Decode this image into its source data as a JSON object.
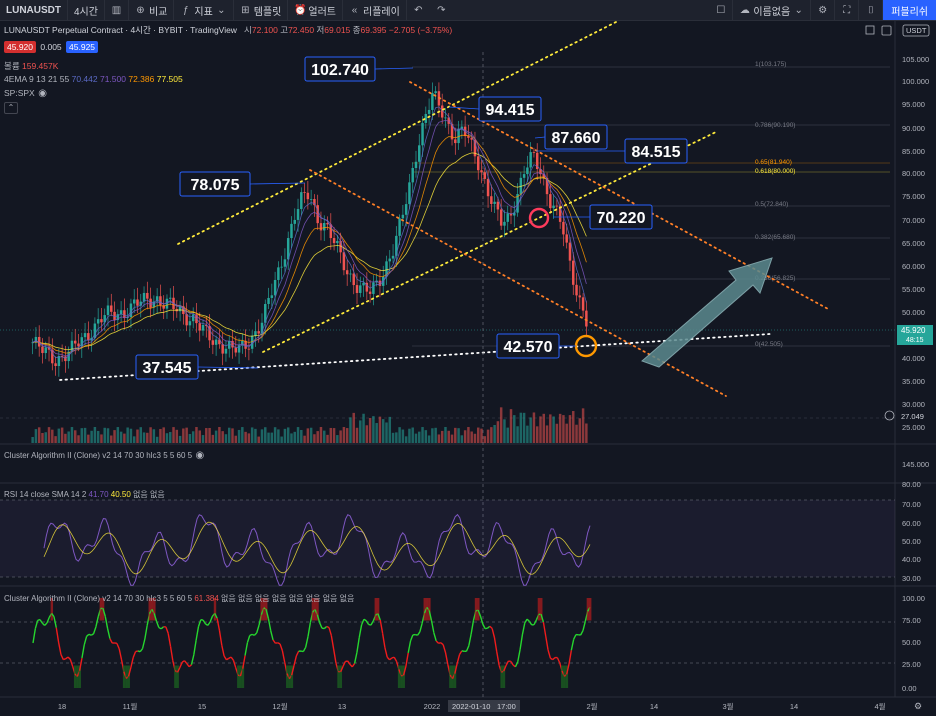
{
  "toolbar": {
    "symbol": "LUNAUSDT",
    "interval": "4시간",
    "compare": "비교",
    "indicators": "지표",
    "templates": "템플릿",
    "alert": "얼러트",
    "replay": "리플레이",
    "unnamed": "이름없음",
    "publish": "퍼블리쉬"
  },
  "legend": {
    "title": "LUNAUSDT Perpetual Contract · 4시간 · BYBIT · TradingView",
    "o_label": "시",
    "o": "72.100",
    "h_label": "고",
    "h": "72.450",
    "l_label": "저",
    "l": "69.015",
    "c_label": "종",
    "c": "69.395",
    "change": "−2.705 (−3.75%)",
    "bid": "45.920",
    "spread": "0.005",
    "ask": "45.925",
    "volume_label": "볼륨",
    "volume": "159.457K",
    "ema_label": "4EMA 9 13 21 55",
    "ema1": "70.442",
    "ema2": "71.500",
    "ema3": "72.386",
    "ema4": "77.505",
    "compare_symbol": "SP:SPX"
  },
  "currency": "USDT",
  "last_price": "45.920",
  "countdown": "48:15",
  "volume_pane_label": "27.049",
  "axis_extra": "145.000",
  "panes": {
    "cluster1": "Cluster Algorithm II (Clone) v2 14 70 30 hlc3 5 5 60 5",
    "rsi": {
      "title": "RSI 14 close SMA 14 2",
      "v1": "41.70",
      "v2": "40.50",
      "na": "없음 없음"
    },
    "cluster2": {
      "title": "Cluster Algorithm II (Clone) v2 14 70 30 hlc3 5 5 60 5",
      "value": "61.384",
      "na": "없음 없음 없음 없음 없음 없음 없음 없음"
    }
  },
  "callouts": [
    "102.740",
    "94.415",
    "87.660",
    "84.515",
    "78.075",
    "70.220",
    "37.545",
    "42.570"
  ],
  "fib_levels": [
    "1(103.175)",
    "0.786(90.190)",
    "0.65(81.940)",
    "0.618(80.000)",
    "0.5(72.840)",
    "0.382(65.680)",
    "0.236(56.825)",
    "0(42.505)"
  ],
  "chart_data": {
    "type": "line",
    "title": "LUNAUSDT Perpetual Contract · 4시간 · BYBIT · TradingView",
    "x_ticks": [
      "18",
      "11월",
      "15",
      "12월",
      "13",
      "2022",
      "2022-01-10",
      "17:00",
      "2월",
      "14",
      "3월",
      "14",
      "4월"
    ],
    "y_ticks": [
      "105.000",
      "100.000",
      "95.000",
      "90.000",
      "85.000",
      "80.000",
      "75.000",
      "70.000",
      "65.000",
      "60.000",
      "55.000",
      "50.000",
      "40.000",
      "35.000",
      "30.000",
      "25.000"
    ],
    "ylim": [
      25,
      110
    ],
    "x": [
      0,
      2,
      4,
      6,
      8,
      10,
      12,
      14,
      16,
      18,
      20,
      22,
      24,
      26,
      28,
      30,
      32,
      34,
      36,
      38,
      40,
      42,
      44,
      46,
      48,
      50,
      52,
      54,
      56,
      58,
      60,
      62,
      64,
      66,
      68,
      70,
      72,
      74,
      76,
      78,
      80,
      82,
      84,
      86,
      88,
      90,
      92,
      94,
      96,
      98,
      100,
      102,
      104,
      106,
      108,
      110,
      112,
      114,
      116,
      118,
      120,
      122,
      124,
      126,
      128,
      130,
      132,
      134,
      136,
      138,
      140,
      142,
      144
    ],
    "series": [
      {
        "values": [
          40,
          38,
          37,
          36,
          36.5,
          37.5,
          40,
          42,
          44,
          46,
          47,
          47.5,
          48,
          49,
          50,
          51,
          51.5,
          50,
          49,
          48,
          47,
          46,
          43,
          41,
          40,
          39.5,
          38,
          37.8,
          40,
          43,
          46,
          52,
          58,
          65,
          72,
          76,
          78,
          72,
          70,
          66,
          62,
          58,
          55,
          53,
          52.5,
          56,
          60,
          64,
          71,
          80,
          90,
          97,
          102.5,
          100,
          96,
          92,
          94,
          90,
          86,
          80,
          74,
          70,
          72,
          78,
          84,
          87,
          84,
          78,
          74,
          68,
          58,
          52,
          46
        ]
      }
    ],
    "rsi_ylim": [
      30,
      80
    ],
    "rsi_levels": [
      30,
      70
    ],
    "cluster_ylim": [
      0,
      100
    ],
    "cluster_levels": [
      25,
      75
    ]
  }
}
